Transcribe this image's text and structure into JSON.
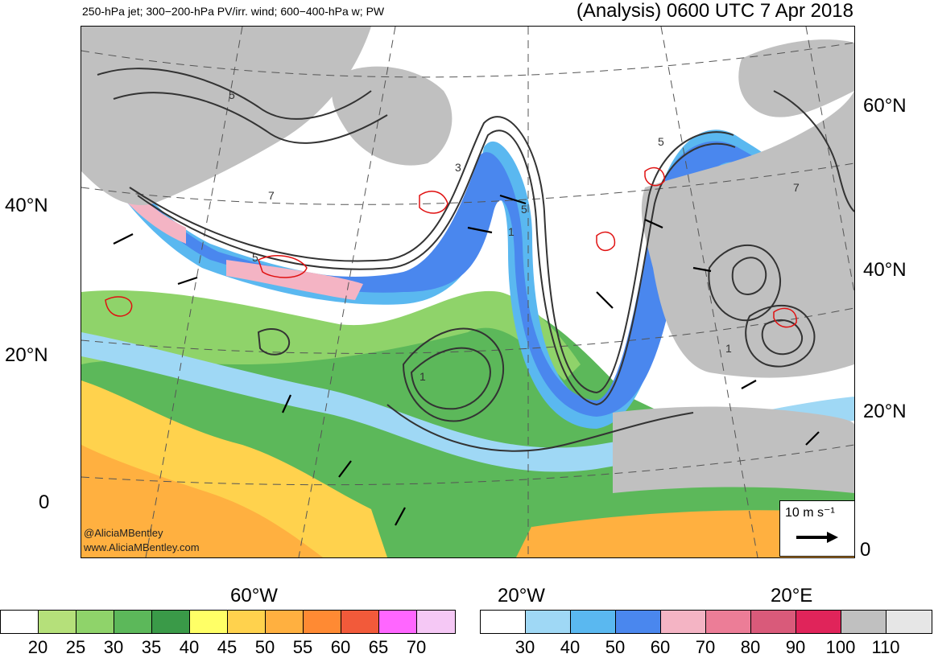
{
  "header": {
    "left": "250-hPa jet; 300−200-hPa PV/irr. wind; 600−400-hPa w; PW",
    "right": "(Analysis) 0600 UTC 7 Apr 2018"
  },
  "lat_labels_left": [
    "40°N",
    "20°N",
    "0"
  ],
  "lat_labels_right": [
    "60°N",
    "40°N",
    "20°N",
    "0"
  ],
  "lon_labels": [
    "60°W",
    "20°W",
    "20°E"
  ],
  "credit": {
    "handle": "@AliciaMBentley",
    "site": "www.AliciaMBentley.com"
  },
  "scale_vector": {
    "label": "10 m s⁻¹"
  },
  "contour_labels": [
    "5",
    "7",
    "5",
    "3",
    "5",
    "5",
    "7",
    "1",
    "1",
    "1"
  ],
  "pw_colorbar": {
    "ticks": [
      "20",
      "25",
      "30",
      "35",
      "40",
      "45",
      "50",
      "55",
      "60",
      "65",
      "70"
    ],
    "colors": [
      "#ffffff",
      "#b5e07a",
      "#8fd36a",
      "#5cb85a",
      "#3a9a48",
      "#ffff66",
      "#ffd24d",
      "#ffb040",
      "#ff8a33",
      "#f25a3a",
      "#ff66ff",
      "#f5c8f5"
    ]
  },
  "jet_colorbar": {
    "ticks": [
      "30",
      "40",
      "50",
      "60",
      "70",
      "80",
      "90",
      "100",
      "110"
    ],
    "colors": [
      "#ffffff",
      "#9fd8f5",
      "#5ab8f0",
      "#4a87ee",
      "#f4b4c4",
      "#ec7d97",
      "#d95a7a",
      "#e0245a",
      "#c0c0c0",
      "#e6e6e6"
    ]
  }
}
